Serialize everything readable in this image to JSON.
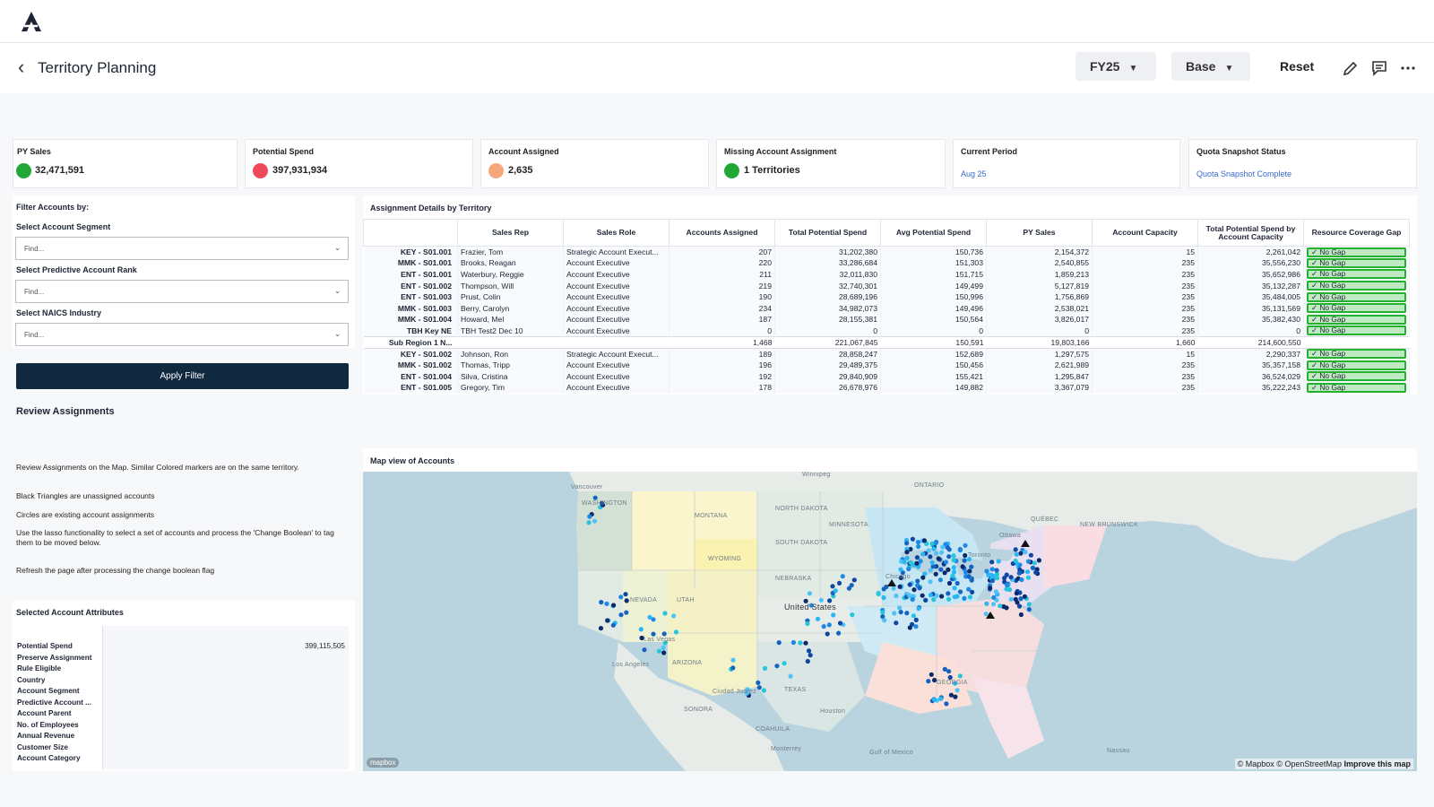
{
  "header": {
    "title": "Territory Planning",
    "fy_select": "FY25",
    "scenario_select": "Base",
    "reset_label": "Reset"
  },
  "kpis": [
    {
      "label": "PY Sales",
      "value": "32,471,591",
      "status_color": "#1fa836"
    },
    {
      "label": "Potential Spend",
      "value": "397,931,934",
      "status_color": "#f04a5a"
    },
    {
      "label": "Account Assigned",
      "value": "2,635",
      "status_color": "#f6a67a"
    },
    {
      "label": "Missing Account Assignment",
      "value": "1 Territories",
      "status_color": "#1fa836"
    },
    {
      "label": "Current Period",
      "value": "Aug 25"
    },
    {
      "label": "Quota Snapshot Status",
      "value": "Quota Snapshot Complete"
    }
  ],
  "filters": {
    "title": "Filter Accounts by:",
    "segment_label": "Select Account Segment",
    "rank_label": "Select Predictive Account Rank",
    "naics_label": "Select NAICS Industry",
    "placeholder": "Find...",
    "apply_label": "Apply Filter"
  },
  "review": {
    "title": "Review Assignments",
    "line1": "Review Assignments on the Map.  Similar Colored markers are on the same territory.",
    "line2": "Black Triangles are unassigned accounts",
    "line3": "Circles are existing account assignments",
    "line4": "Use the lasso functionality to select a set of accounts and process the 'Change Boolean' to tag them to be moved below.",
    "line5": "Refresh the page after processing the change boolean flag"
  },
  "attributes": {
    "title": "Selected Account Attributes",
    "rows": [
      {
        "key": "Potential Spend",
        "value": "399,115,505"
      },
      {
        "key": "Preserve Assignment",
        "value": ""
      },
      {
        "key": "Rule Eligible",
        "value": ""
      },
      {
        "key": "Country",
        "value": ""
      },
      {
        "key": "Account Segment",
        "value": ""
      },
      {
        "key": "Predictive Account ...",
        "value": ""
      },
      {
        "key": "Account Parent",
        "value": ""
      },
      {
        "key": "No. of Employees",
        "value": ""
      },
      {
        "key": "Annual Revenue",
        "value": ""
      },
      {
        "key": "Customer Size",
        "value": ""
      },
      {
        "key": "Account Category",
        "value": ""
      }
    ]
  },
  "assignment_table": {
    "title": "Assignment Details by Territory",
    "columns": [
      "",
      "Sales Rep",
      "Sales Role",
      "Accounts Assigned",
      "Total Potential Spend",
      "Avg Potential Spend",
      "PY Sales",
      "Account Capacity",
      "Total Potential Spend by Account Capacity",
      "Resource Coverage Gap"
    ],
    "rows": [
      {
        "territory": "KEY - S01.001",
        "rep": "Frazier, Tom",
        "role": "Strategic Account Execut...",
        "assigned": "207",
        "total": "31,202,380",
        "avg": "150,736",
        "py": "2,154,372",
        "capacity": "15",
        "by_capacity": "2,261,042",
        "gap": "✓ No Gap"
      },
      {
        "territory": "MMK - S01.001",
        "rep": "Brooks, Reagan",
        "role": "Account Executive",
        "assigned": "220",
        "total": "33,286,684",
        "avg": "151,303",
        "py": "2,540,855",
        "capacity": "235",
        "by_capacity": "35,556,230",
        "gap": "✓ No Gap"
      },
      {
        "territory": "ENT - S01.001",
        "rep": "Waterbury, Reggie",
        "role": "Account Executive",
        "assigned": "211",
        "total": "32,011,830",
        "avg": "151,715",
        "py": "1,859,213",
        "capacity": "235",
        "by_capacity": "35,652,986",
        "gap": "✓ No Gap"
      },
      {
        "territory": "ENT - S01.002",
        "rep": "Thompson, Will",
        "role": "Account Executive",
        "assigned": "219",
        "total": "32,740,301",
        "avg": "149,499",
        "py": "5,127,819",
        "capacity": "235",
        "by_capacity": "35,132,287",
        "gap": "✓ No Gap"
      },
      {
        "territory": "ENT - S01.003",
        "rep": "Prust, Colin",
        "role": "Account Executive",
        "assigned": "190",
        "total": "28,689,196",
        "avg": "150,996",
        "py": "1,756,869",
        "capacity": "235",
        "by_capacity": "35,484,005",
        "gap": "✓ No Gap"
      },
      {
        "territory": "MMK - S01.003",
        "rep": "Berry, Carolyn",
        "role": "Account Executive",
        "assigned": "234",
        "total": "34,982,073",
        "avg": "149,496",
        "py": "2,538,021",
        "capacity": "235",
        "by_capacity": "35,131,569",
        "gap": "✓ No Gap"
      },
      {
        "territory": "MMK - S01.004",
        "rep": "Howard, Mel",
        "role": "Account Executive",
        "assigned": "187",
        "total": "28,155,381",
        "avg": "150,564",
        "py": "3,826,017",
        "capacity": "235",
        "by_capacity": "35,382,430",
        "gap": "✓ No Gap"
      },
      {
        "territory": "TBH Key NE",
        "rep": "TBH Test2 Dec 10",
        "role": "Account Executive",
        "assigned": "0",
        "total": "0",
        "avg": "0",
        "py": "0",
        "capacity": "235",
        "by_capacity": "0",
        "gap": "✓ No Gap"
      },
      {
        "territory": "Sub Region 1 N...",
        "rep": "",
        "role": "",
        "assigned": "1,468",
        "total": "221,067,845",
        "avg": "150,591",
        "py": "19,803,166",
        "capacity": "1,660",
        "by_capacity": "214,600,550",
        "gap": "",
        "subtotal": true
      },
      {
        "territory": "KEY - S01.002",
        "rep": "Johnson, Ron",
        "role": "Strategic Account Execut...",
        "assigned": "189",
        "total": "28,858,247",
        "avg": "152,689",
        "py": "1,297,575",
        "capacity": "15",
        "by_capacity": "2,290,337",
        "gap": "✓ No Gap"
      },
      {
        "territory": "MMK - S01.002",
        "rep": "Thomas, Tripp",
        "role": "Account Executive",
        "assigned": "196",
        "total": "29,489,375",
        "avg": "150,456",
        "py": "2,621,989",
        "capacity": "235",
        "by_capacity": "35,357,158",
        "gap": "✓ No Gap"
      },
      {
        "territory": "ENT - S01.004",
        "rep": "Silva, Cristina",
        "role": "Account Executive",
        "assigned": "192",
        "total": "29,840,909",
        "avg": "155,421",
        "py": "1,295,847",
        "capacity": "235",
        "by_capacity": "36,524,029",
        "gap": "✓ No Gap"
      },
      {
        "territory": "ENT - S01.005",
        "rep": "Gregory, Tim",
        "role": "Account Executive",
        "assigned": "178",
        "total": "26,678,976",
        "avg": "149,882",
        "py": "3,367,079",
        "capacity": "235",
        "by_capacity": "35,222,243",
        "gap": "✓ No Gap"
      }
    ]
  },
  "map": {
    "title": "Map view of Accounts",
    "attribution": "© Mapbox © OpenStreetMap",
    "improve": "Improve this map",
    "logo": "mapbox",
    "labels": {
      "country": "United States",
      "winnipeg": "Winnipeg",
      "ontario": "ONTARIO",
      "quebec": "QUÉBEC",
      "montana": "MONTANA",
      "north_dakota": "NORTH DAKOTA",
      "south_dakota": "SOUTH DAKOTA",
      "wyoming": "WYOMING",
      "nebraska": "NEBRASKA",
      "nevada": "NEVADA",
      "utah": "UTAH",
      "arizona": "ARIZONA",
      "texas": "TEXAS",
      "georgia": "GEORGIA",
      "sonora": "SONORA",
      "coahuila": "COAHUILA",
      "los_angeles": "Los Angeles",
      "las_vegas": "Las Vegas",
      "chicago": "Chicago",
      "toronto": "Toronto",
      "ottawa": "Ottawa",
      "gulf": "Gulf of Mexico",
      "washington": "WASHINGTON",
      "vancouver": "Vancouver",
      "minnesota": "MINNESOTA",
      "ciudad_juarez": "Ciudad Juárez",
      "houston": "Houston",
      "monterrey": "Monterrey",
      "new_brunswick": "NEW BRUNSWICK",
      "nassau": "Nassau"
    },
    "colors": {
      "water": "#b9d3df",
      "land": "#e9ecea",
      "unassigned": "#111111"
    }
  }
}
